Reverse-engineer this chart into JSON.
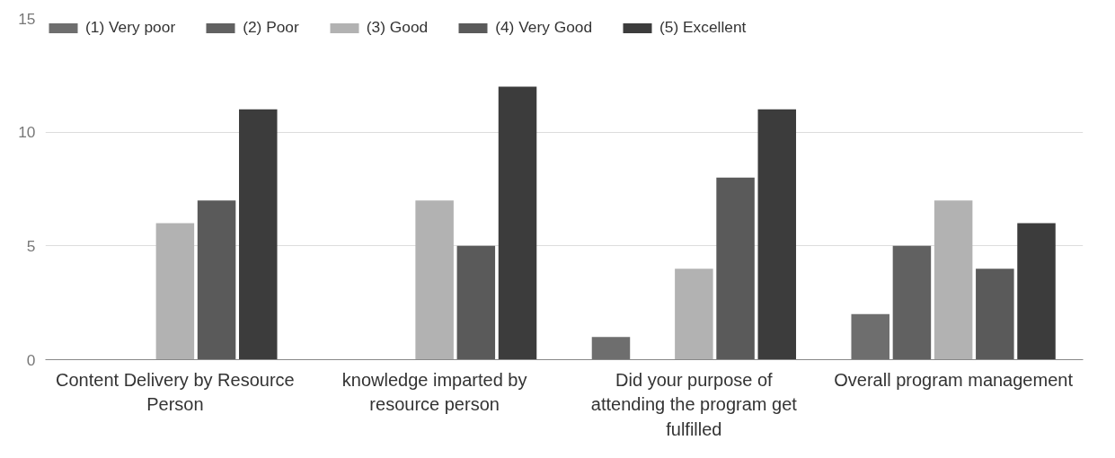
{
  "chart_data": {
    "type": "bar",
    "categories": [
      "Content Delivery by Resource Person",
      "knowledge imparted by resource person",
      "Did your purpose of attending the program get fulfilled",
      "Overall program management"
    ],
    "series": [
      {
        "name": "(1) Very poor",
        "color": "#6e6e6e",
        "values": [
          0,
          0,
          1,
          2
        ]
      },
      {
        "name": "(2) Poor",
        "color": "#616161",
        "values": [
          0,
          0,
          0,
          5
        ]
      },
      {
        "name": "(3) Good",
        "color": "#b2b2b2",
        "values": [
          6,
          7,
          4,
          7
        ]
      },
      {
        "name": "(4) Very Good",
        "color": "#5a5a5a",
        "values": [
          7,
          5,
          8,
          4
        ]
      },
      {
        "name": "(5) Excellent",
        "color": "#3c3c3c",
        "values": [
          11,
          12,
          11,
          6
        ]
      }
    ],
    "ylim": [
      0,
      15
    ],
    "yticks": [
      0,
      5,
      10,
      15
    ],
    "grid": "y",
    "legend": "top"
  }
}
